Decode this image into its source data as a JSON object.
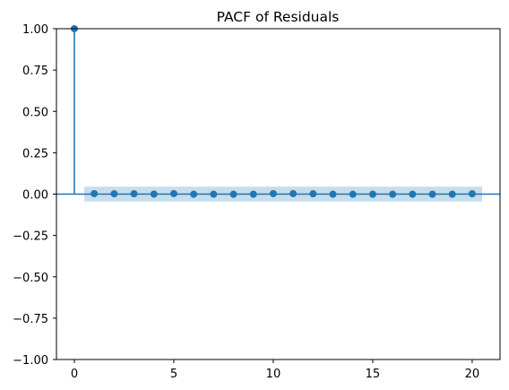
{
  "chart_data": {
    "type": "scatter",
    "subtype": "pacf-stem",
    "title": "PACF of Residuals",
    "xlabel": "",
    "ylabel": "",
    "xlim": [
      -0.9,
      21.4
    ],
    "ylim": [
      -1.0,
      1.0
    ],
    "xticks": [
      0,
      5,
      10,
      15,
      20
    ],
    "yticks": [
      -1.0,
      -0.75,
      -0.5,
      -0.25,
      0.0,
      0.25,
      0.5,
      0.75,
      1.0
    ],
    "xtick_labels": [
      "0",
      "5",
      "10",
      "15",
      "20"
    ],
    "ytick_labels": [
      "−1.00",
      "−0.75",
      "−0.50",
      "−0.25",
      "0.00",
      "0.25",
      "0.50",
      "0.75",
      "1.00"
    ],
    "grid": false,
    "legend": "none",
    "series": [
      {
        "lags": [
          0,
          1,
          2,
          3,
          4,
          5,
          6,
          7,
          8,
          9,
          10,
          11,
          12,
          13,
          14,
          15,
          16,
          17,
          18,
          19,
          20
        ],
        "values": [
          1.0,
          0.003,
          0.002,
          0.002,
          0.0,
          0.003,
          -0.001,
          -0.001,
          -0.001,
          -0.001,
          0.003,
          0.003,
          0.002,
          -0.001,
          -0.001,
          -0.001,
          -0.001,
          -0.001,
          -0.001,
          -0.001,
          0.002
        ]
      }
    ],
    "confidence_band": {
      "x_from": 0.5,
      "x_to": 20.5,
      "lower": -0.045,
      "upper": 0.045
    },
    "colors": {
      "marker": "#1f77b4",
      "band": "#1f77b4",
      "zero_line": "#1f77b4",
      "axis": "#000000"
    }
  }
}
